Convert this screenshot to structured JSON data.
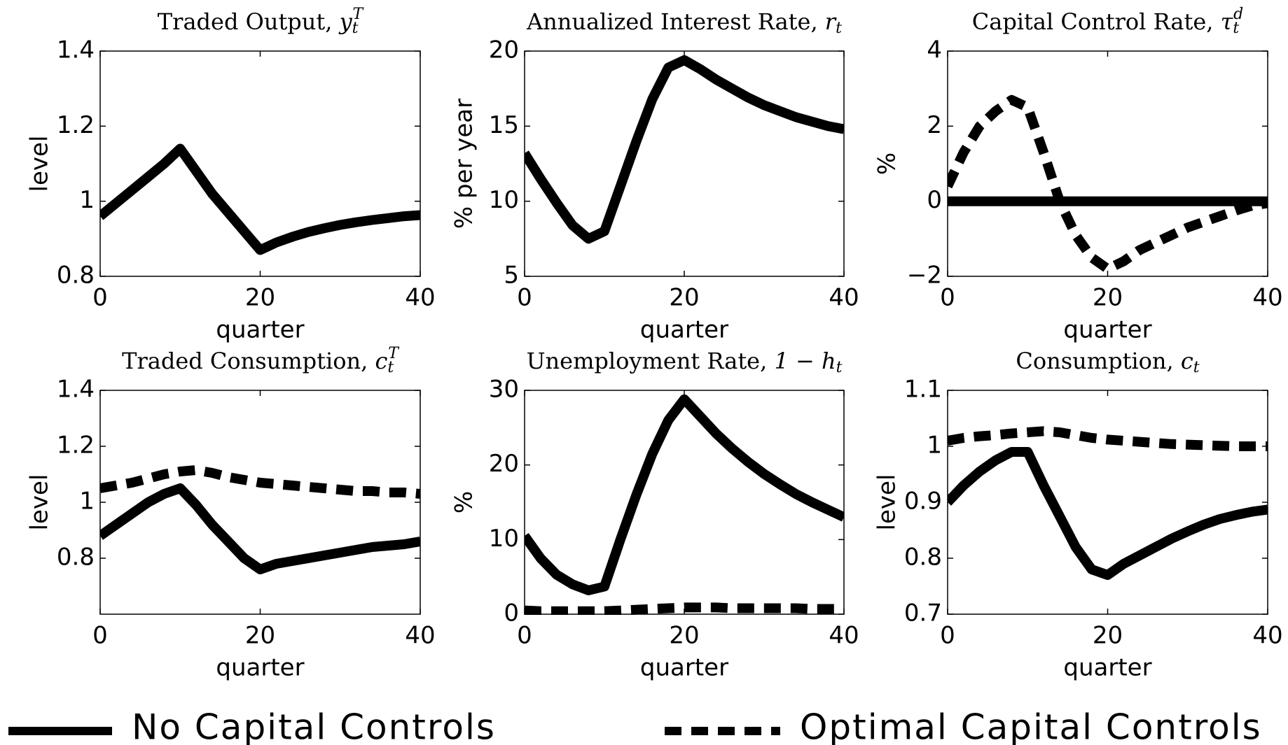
{
  "chart_data": [
    {
      "type": "line",
      "title": "Traded Output, ",
      "title_math": {
        "base": "y",
        "sub": "t",
        "sup": "T"
      },
      "xlabel": "quarter",
      "ylabel": "level",
      "x": [
        0,
        2,
        4,
        6,
        8,
        10,
        12,
        14,
        16,
        18,
        20,
        22,
        24,
        26,
        28,
        30,
        32,
        34,
        36,
        38,
        40
      ],
      "xlim": [
        0,
        40
      ],
      "xticks": [
        0,
        20,
        40
      ],
      "ylim": [
        0.8,
        1.4
      ],
      "yticks": [
        0.8,
        1,
        1.2,
        1.4
      ],
      "series": [
        {
          "style": "solid",
          "values": [
            0.96,
            0.995,
            1.03,
            1.065,
            1.1,
            1.14,
            1.08,
            1.02,
            0.97,
            0.92,
            0.87,
            0.89,
            0.905,
            0.918,
            0.928,
            0.937,
            0.944,
            0.95,
            0.955,
            0.96,
            0.963
          ]
        }
      ]
    },
    {
      "type": "line",
      "title": "Annualized Interest Rate, ",
      "title_math": {
        "base": "r",
        "sub": "t"
      },
      "xlabel": "quarter",
      "ylabel": "% per year",
      "x": [
        0,
        2,
        4,
        6,
        8,
        10,
        12,
        14,
        16,
        18,
        20,
        22,
        24,
        26,
        28,
        30,
        32,
        34,
        36,
        38,
        40
      ],
      "xlim": [
        0,
        40
      ],
      "xticks": [
        0,
        20,
        40
      ],
      "ylim": [
        5,
        20
      ],
      "yticks": [
        5,
        10,
        15,
        20
      ],
      "series": [
        {
          "style": "solid",
          "values": [
            13.2,
            11.5,
            9.9,
            8.4,
            7.5,
            8.0,
            11.0,
            14.0,
            16.8,
            18.9,
            19.4,
            18.8,
            18.1,
            17.5,
            16.9,
            16.4,
            16.0,
            15.6,
            15.3,
            15.0,
            14.8
          ]
        }
      ]
    },
    {
      "type": "line",
      "title": "Capital Control Rate, ",
      "title_math": {
        "base": "τ",
        "sub": "t",
        "sup": "d"
      },
      "xlabel": "quarter",
      "ylabel": "%",
      "x": [
        0,
        2,
        4,
        6,
        8,
        10,
        12,
        14,
        16,
        18,
        20,
        22,
        24,
        26,
        28,
        30,
        32,
        34,
        36,
        38,
        40
      ],
      "xlim": [
        0,
        40
      ],
      "xticks": [
        0,
        20,
        40
      ],
      "ylim": [
        -2,
        4
      ],
      "yticks": [
        {
          "value": -2,
          "label": "−2"
        },
        0,
        2,
        4
      ],
      "series": [
        {
          "style": "solid",
          "values": [
            0,
            0,
            0,
            0,
            0,
            0,
            0,
            0,
            0,
            0,
            0,
            0,
            0,
            0,
            0,
            0,
            0,
            0,
            0,
            0,
            0
          ]
        },
        {
          "style": "dashed",
          "values": [
            0.4,
            1.3,
            2.0,
            2.4,
            2.7,
            2.5,
            1.3,
            0,
            -0.9,
            -1.5,
            -1.8,
            -1.6,
            -1.3,
            -1.1,
            -0.9,
            -0.7,
            -0.55,
            -0.4,
            -0.25,
            -0.12,
            -0.05
          ]
        }
      ]
    },
    {
      "type": "line",
      "title": "Traded Consumption, ",
      "title_math": {
        "base": "c",
        "sub": "t",
        "sup": "T"
      },
      "xlabel": "quarter",
      "ylabel": "level",
      "x": [
        0,
        2,
        4,
        6,
        8,
        10,
        12,
        14,
        16,
        18,
        20,
        22,
        24,
        26,
        28,
        30,
        32,
        34,
        36,
        38,
        40
      ],
      "xlim": [
        0,
        40
      ],
      "xticks": [
        0,
        20,
        40
      ],
      "ylim": [
        0.6,
        1.4
      ],
      "yticks": [
        0.8,
        1,
        1.2,
        1.4
      ],
      "series": [
        {
          "style": "solid",
          "values": [
            0.88,
            0.92,
            0.96,
            1.0,
            1.03,
            1.05,
            0.99,
            0.92,
            0.86,
            0.8,
            0.76,
            0.78,
            0.79,
            0.8,
            0.81,
            0.82,
            0.83,
            0.84,
            0.845,
            0.85,
            0.86
          ]
        },
        {
          "style": "dashed",
          "values": [
            1.05,
            1.06,
            1.07,
            1.085,
            1.1,
            1.11,
            1.115,
            1.105,
            1.09,
            1.08,
            1.07,
            1.065,
            1.06,
            1.055,
            1.05,
            1.045,
            1.04,
            1.04,
            1.035,
            1.035,
            1.03
          ]
        }
      ]
    },
    {
      "type": "line",
      "title": "Unemployment Rate, ",
      "title_math": {
        "base": "1 − h",
        "sub": "t"
      },
      "xlabel": "quarter",
      "ylabel": "%",
      "x": [
        0,
        2,
        4,
        6,
        8,
        10,
        12,
        14,
        16,
        18,
        20,
        22,
        24,
        26,
        28,
        30,
        32,
        34,
        36,
        38,
        40
      ],
      "xlim": [
        0,
        40
      ],
      "xticks": [
        0,
        20,
        40
      ],
      "ylim": [
        0,
        30
      ],
      "yticks": [
        0,
        10,
        20,
        30
      ],
      "series": [
        {
          "style": "solid",
          "values": [
            10.5,
            7.5,
            5.3,
            4.0,
            3.2,
            3.7,
            10,
            16,
            21.5,
            26,
            28.8,
            26.5,
            24.2,
            22.2,
            20.4,
            18.8,
            17.4,
            16.1,
            15,
            14,
            13
          ]
        },
        {
          "style": "dashed",
          "values": [
            0.5,
            0.4,
            0.4,
            0.4,
            0.4,
            0.4,
            0.5,
            0.6,
            0.7,
            0.8,
            0.9,
            0.9,
            0.9,
            0.8,
            0.8,
            0.8,
            0.8,
            0.8,
            0.7,
            0.7,
            0.7
          ]
        }
      ]
    },
    {
      "type": "line",
      "title": "Consumption, ",
      "title_math": {
        "base": "c",
        "sub": "t"
      },
      "xlabel": "quarter",
      "ylabel": "level",
      "x": [
        0,
        2,
        4,
        6,
        8,
        10,
        12,
        14,
        16,
        18,
        20,
        22,
        24,
        26,
        28,
        30,
        32,
        34,
        36,
        38,
        40
      ],
      "xlim": [
        0,
        40
      ],
      "xticks": [
        0,
        20,
        40
      ],
      "ylim": [
        0.7,
        1.1
      ],
      "yticks": [
        0.7,
        0.8,
        0.9,
        1,
        1.1
      ],
      "series": [
        {
          "style": "solid",
          "values": [
            0.9,
            0.93,
            0.955,
            0.975,
            0.99,
            0.99,
            0.93,
            0.875,
            0.82,
            0.78,
            0.77,
            0.79,
            0.805,
            0.82,
            0.835,
            0.848,
            0.86,
            0.87,
            0.877,
            0.883,
            0.887
          ]
        },
        {
          "style": "dashed",
          "values": [
            1.01,
            1.015,
            1.018,
            1.02,
            1.023,
            1.025,
            1.027,
            1.025,
            1.02,
            1.015,
            1.012,
            1.01,
            1.008,
            1.006,
            1.004,
            1.003,
            1.002,
            1.001,
            1.0,
            1.0,
            1.0
          ]
        }
      ]
    }
  ],
  "legend": [
    {
      "name": "No Capital Controls",
      "style": "solid"
    },
    {
      "name": "Optimal Capital Controls",
      "style": "dashed"
    }
  ]
}
